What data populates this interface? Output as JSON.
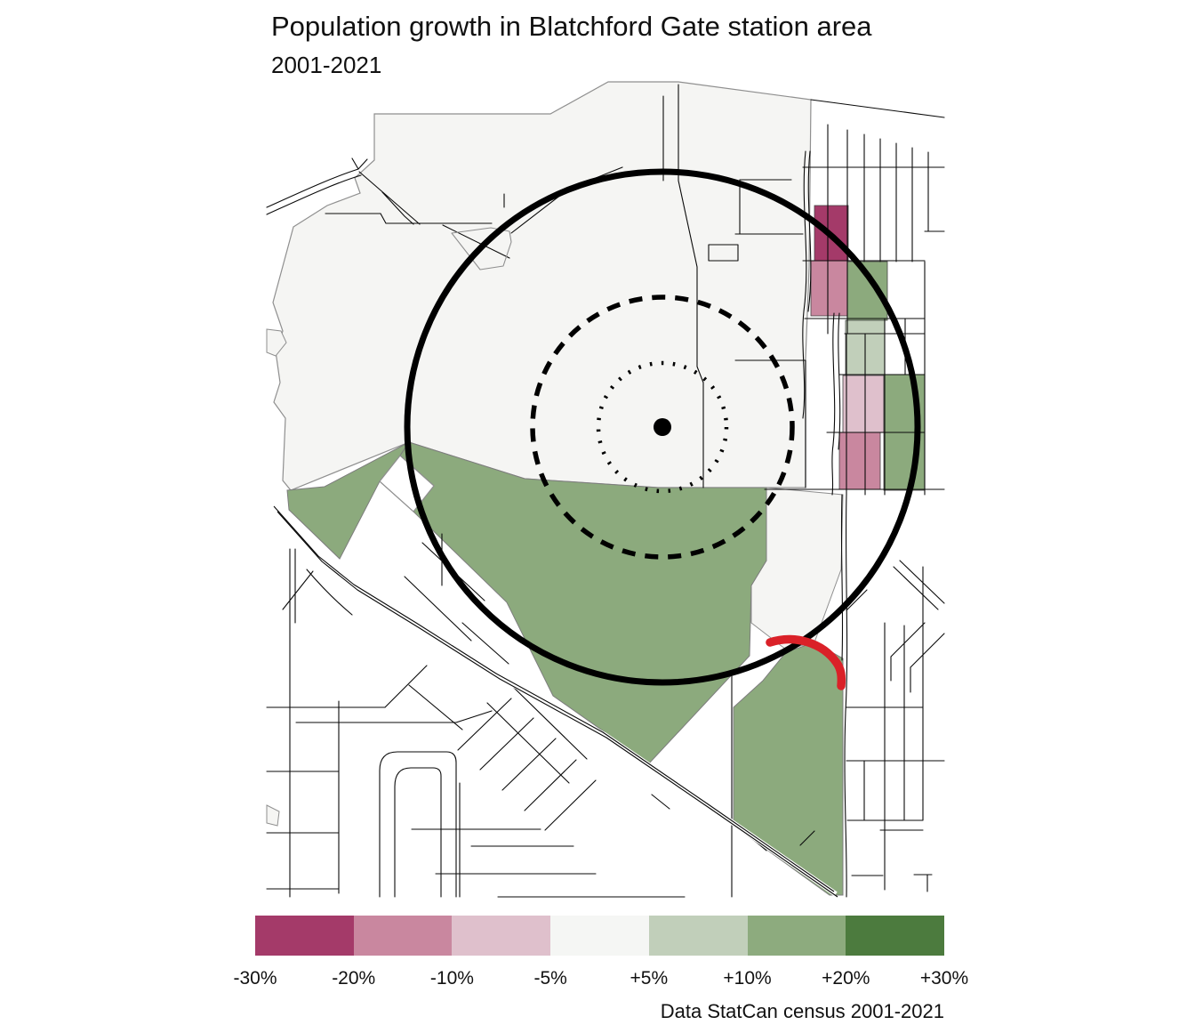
{
  "header": {
    "title": "Population growth in Blatchford Gate station area",
    "subtitle": "2001-2021"
  },
  "caption": "Data StatCan census 2001-2021",
  "legend": {
    "labels": [
      "-30%",
      "-20%",
      "-10%",
      "-5%",
      "+5%",
      "+10%",
      "+20%",
      "+30%"
    ],
    "colors": [
      "#a43a69",
      "#c9879f",
      "#dfc0cc",
      "#f5f6f4",
      "#c1cfba",
      "#8dab7e",
      "#4c7b3e"
    ]
  },
  "map": {
    "colors": {
      "stable": "#f5f5f3",
      "growth_5_10": "#c1cfba",
      "growth_10_20": "#8caa7d",
      "decline_5_10": "#dfc0cc",
      "decline_10_20": "#c9879f",
      "decline_20_30": "#a43a69",
      "road": "#0a0a0a",
      "boundary": "#8f8f8f",
      "ring": "#000000",
      "highlight": "#da2128",
      "white": "#ffffff"
    },
    "rings": {
      "outer_style": "solid",
      "middle_style": "dashed",
      "inner_style": "dotted"
    },
    "station": {
      "marker": "filled-dot"
    },
    "scale_breaks": [
      "-30%",
      "-20%",
      "-10%",
      "-5%",
      "+5%",
      "+10%",
      "+20%",
      "+30%"
    ]
  }
}
